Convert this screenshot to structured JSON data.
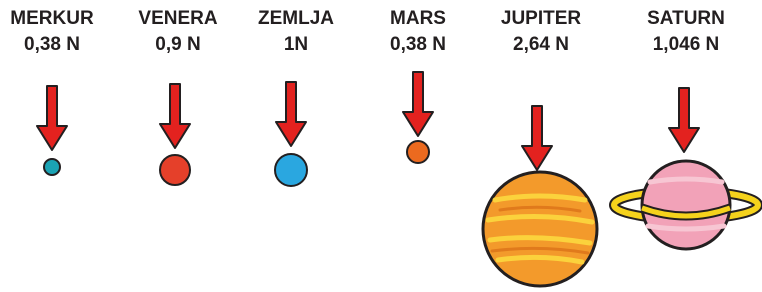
{
  "planets": [
    {
      "name": "MERKUR",
      "force": "0,38 N"
    },
    {
      "name": "VENERA",
      "force": "0,9 N"
    },
    {
      "name": "ZEMLJA",
      "force": "1N"
    },
    {
      "name": "MARS",
      "force": "0,38 N"
    },
    {
      "name": "JUPITER",
      "force": "2,64 N"
    },
    {
      "name": "SATURN",
      "force": "1,046 N"
    }
  ]
}
